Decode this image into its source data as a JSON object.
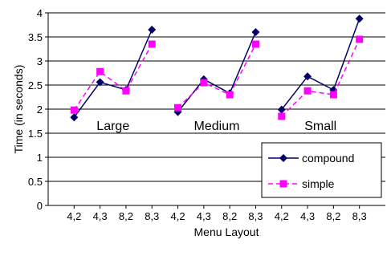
{
  "chart_data": {
    "type": "line",
    "xlabel": "Menu Layout",
    "ylabel": "Time (in seconds)",
    "ylim": [
      0,
      4
    ],
    "yticks": [
      "0",
      "0.5",
      "1",
      "1.5",
      "2",
      "2.5",
      "3",
      "3.5",
      "4"
    ],
    "grid": "horizontal",
    "legend_position": "bottom-right",
    "groups": [
      {
        "label": "Large",
        "categories": [
          "4,2",
          "4,3",
          "8,2",
          "8,3"
        ]
      },
      {
        "label": "Medium",
        "categories": [
          "4,2",
          "4,3",
          "8,2",
          "8,3"
        ]
      },
      {
        "label": "Small",
        "categories": [
          "4,2",
          "4,3",
          "8,2",
          "8,3"
        ]
      }
    ],
    "series": [
      {
        "name": "compound",
        "color": "#000066",
        "marker": "diamond",
        "line_style": "solid",
        "values": [
          [
            1.83,
            2.56,
            2.4,
            3.65
          ],
          [
            1.94,
            2.62,
            2.33,
            3.6
          ],
          [
            1.99,
            2.68,
            2.4,
            3.88
          ]
        ]
      },
      {
        "name": "simple",
        "color": "#ff00ff",
        "marker": "square",
        "line_style": "dashed",
        "values": [
          [
            1.98,
            2.78,
            2.38,
            3.35
          ],
          [
            2.03,
            2.55,
            2.3,
            3.35
          ],
          [
            1.85,
            2.38,
            2.3,
            3.45
          ]
        ]
      }
    ]
  }
}
